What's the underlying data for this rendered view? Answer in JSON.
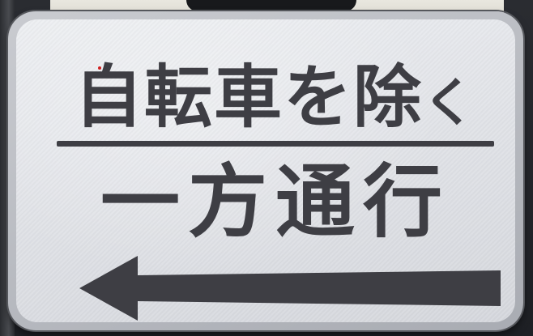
{
  "sign": {
    "line1": "自転車を除",
    "line1_kana": "く",
    "line2": "一方通行",
    "arrow_direction": "left",
    "colors": {
      "text": "#3e3e44",
      "plate": "#e4e6ea",
      "frame": "#b5b8be"
    }
  }
}
